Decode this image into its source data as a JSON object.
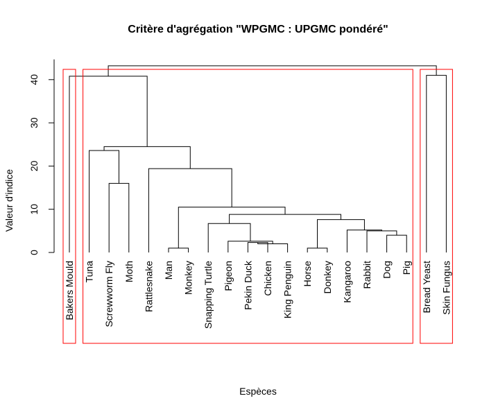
{
  "chart_data": {
    "type": "dendrogram",
    "title": "Critère d'agrégation \"WPGMC : UPGMC pondéré\"",
    "xlabel": "Espèces",
    "ylabel": "Valeur d'indice",
    "ylim": [
      0,
      45
    ],
    "yticks": [
      0,
      10,
      20,
      30,
      40
    ],
    "grid": false,
    "leaves": [
      "Bakers Mould",
      "Tuna",
      "Screwworm Fly",
      "Moth",
      "Rattlesnake",
      "Man",
      "Monkey",
      "Snapping Turtle",
      "Pigeon",
      "Pekin Duck",
      "Chicken",
      "King Penguin",
      "Horse",
      "Donkey",
      "Kangaroo",
      "Rabbit",
      "Dog",
      "Pig",
      "Bread Yeast",
      "Skin Fungus"
    ],
    "merges": [
      {
        "a": "Pekin Duck",
        "b": "Chicken",
        "height": 2.3,
        "cluster": "C1"
      },
      {
        "a": "King Penguin",
        "b": "C1",
        "height": 2.0,
        "cluster": "C2"
      },
      {
        "a": "Pigeon",
        "b": "C2",
        "height": 2.6,
        "cluster": "C3"
      },
      {
        "a": "Snapping Turtle",
        "b": "C3",
        "height": 6.7,
        "cluster": "C4"
      },
      {
        "a": "Man",
        "b": "Monkey",
        "height": 1.0,
        "cluster": "C5"
      },
      {
        "a": "Horse",
        "b": "Donkey",
        "height": 1.0,
        "cluster": "C6"
      },
      {
        "a": "Dog",
        "b": "Pig",
        "height": 4.0,
        "cluster": "C7"
      },
      {
        "a": "Rabbit",
        "b": "C7",
        "height": 5.0,
        "cluster": "C8"
      },
      {
        "a": "Kangaroo",
        "b": "C8",
        "height": 5.2,
        "cluster": "C9"
      },
      {
        "a": "C6",
        "b": "C9",
        "height": 7.6,
        "cluster": "C10"
      },
      {
        "a": "C4",
        "b": "C10",
        "height": 8.8,
        "cluster": "C11"
      },
      {
        "a": "C5",
        "b": "C11",
        "height": 10.5,
        "cluster": "C12"
      },
      {
        "a": "Rattlesnake",
        "b": "C12",
        "height": 19.4,
        "cluster": "C13"
      },
      {
        "a": "Screwworm Fly",
        "b": "Moth",
        "height": 16.0,
        "cluster": "C14"
      },
      {
        "a": "Tuna",
        "b": "C14",
        "height": 23.6,
        "cluster": "C15"
      },
      {
        "a": "C15",
        "b": "C13",
        "height": 24.5,
        "cluster": "C16"
      },
      {
        "a": "Bread Yeast",
        "b": "Skin Fungus",
        "height": 41.0,
        "cluster": "C17"
      },
      {
        "a": "Bakers Mould",
        "b": "C16",
        "height": 40.8,
        "cluster": "C18"
      },
      {
        "a": "C18",
        "b": "C17",
        "height": 43.2,
        "cluster": "C19"
      }
    ],
    "cluster_boxes": [
      {
        "first": "Bakers Mould",
        "last": "Bakers Mould"
      },
      {
        "first": "Tuna",
        "last": "Pig"
      },
      {
        "first": "Bread Yeast",
        "last": "Skin Fungus"
      }
    ],
    "colors": {
      "tree": "#000000",
      "cluster_box": "#ff0000",
      "background": "#ffffff"
    }
  }
}
